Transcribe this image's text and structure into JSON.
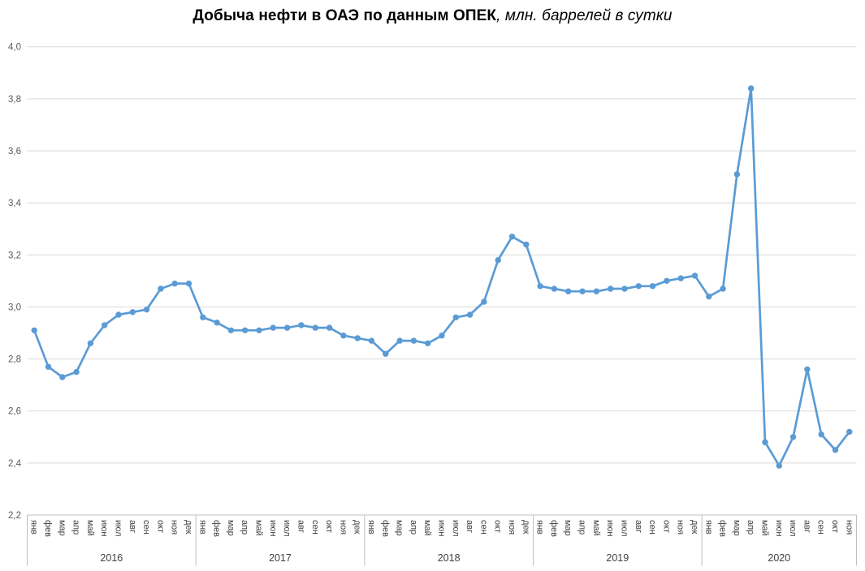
{
  "title": {
    "bold": "Добыча нефти в ОАЭ по данным ОПЕК",
    "italic": ", млн. баррелей в сутки"
  },
  "chart_data": {
    "type": "line",
    "title": "Добыча нефти в ОАЭ по данным ОПЕК, млн. баррелей в сутки",
    "ylabel": "млн. баррелей в сутки",
    "xlabel": "",
    "legend": "none",
    "grid": "horizontal",
    "y_axis": {
      "min": 2.2,
      "max": 4.0,
      "step": 0.2,
      "tick_labels_top_to_bottom": [
        "4,0",
        "3,8",
        "3,6",
        "3,4",
        "3,2",
        "3,0",
        "2,8",
        "2,6",
        "2,4",
        "2,2"
      ]
    },
    "x_axis": {
      "month_labels": [
        "янв",
        "фев",
        "мар",
        "апр",
        "май",
        "июн",
        "июл",
        "авг",
        "сен",
        "окт",
        "ноя",
        "дек"
      ]
    },
    "series": [
      {
        "name": "Добыча нефти в ОАЭ",
        "color": "#5B9BD5",
        "years": [
          {
            "label": "2016",
            "values": [
              2.91,
              2.77,
              2.73,
              2.75,
              2.86,
              2.93,
              2.97,
              2.98,
              2.99,
              3.07,
              3.09,
              3.09
            ]
          },
          {
            "label": "2017",
            "values": [
              2.96,
              2.94,
              2.91,
              2.91,
              2.91,
              2.92,
              2.92,
              2.93,
              2.92,
              2.92,
              2.89,
              2.88
            ]
          },
          {
            "label": "2018",
            "values": [
              2.87,
              2.82,
              2.87,
              2.87,
              2.86,
              2.89,
              2.96,
              2.97,
              3.02,
              3.18,
              3.27,
              3.24
            ]
          },
          {
            "label": "2019",
            "values": [
              3.08,
              3.07,
              3.06,
              3.06,
              3.06,
              3.07,
              3.07,
              3.08,
              3.08,
              3.1,
              3.11,
              3.12
            ]
          },
          {
            "label": "2020",
            "values": [
              3.04,
              3.07,
              3.51,
              3.84,
              2.48,
              2.39,
              2.5,
              2.76,
              2.51,
              2.45,
              2.52
            ]
          }
        ]
      }
    ],
    "colors": {
      "line": "#5B9BD5",
      "gridline": "#D9D9D9",
      "axis_line": "#BFBFBF",
      "y_tick_label": "#595959",
      "x_tick_label": "#404040",
      "background": "#FFFFFF"
    }
  }
}
